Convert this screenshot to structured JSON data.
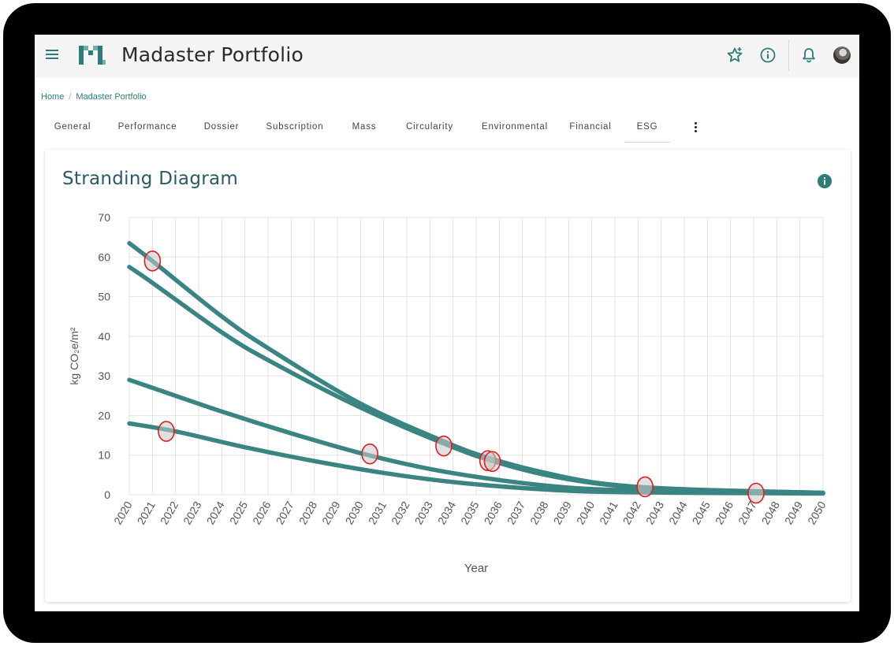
{
  "app": {
    "title": "Madaster Portfolio",
    "logo_name": "madaster-logo",
    "accent_color": "#2e7b78"
  },
  "toolbar": {
    "icons": [
      "menu-icon",
      "star-icon",
      "info-icon",
      "bell-icon"
    ]
  },
  "breadcrumb": {
    "home": "Home",
    "separator": "/",
    "current": "Madaster Portfolio"
  },
  "tabs": [
    {
      "label": "General"
    },
    {
      "label": "Performance"
    },
    {
      "label": "Dossier"
    },
    {
      "label": "Subscription"
    },
    {
      "label": "Mass"
    },
    {
      "label": "Circularity"
    },
    {
      "label": "Environmental"
    },
    {
      "label": "Financial"
    },
    {
      "label": "ESG",
      "active": true
    }
  ],
  "card": {
    "title": "Stranding Diagram"
  },
  "chart_data": {
    "type": "line",
    "title": "Stranding Diagram",
    "xlabel": "Year",
    "ylabel": "kg CO₂e/m²",
    "xlim": [
      2020,
      2050
    ],
    "ylim": [
      0,
      70
    ],
    "yticks": [
      0,
      10,
      20,
      30,
      40,
      50,
      60,
      70
    ],
    "xticks": [
      2020,
      2021,
      2022,
      2023,
      2024,
      2025,
      2026,
      2027,
      2028,
      2029,
      2030,
      2031,
      2032,
      2033,
      2034,
      2035,
      2036,
      2037,
      2038,
      2039,
      2040,
      2041,
      2042,
      2043,
      2044,
      2045,
      2046,
      2047,
      2048,
      2049,
      2050
    ],
    "grid": true,
    "line_color": "#3a8581",
    "marker_color": "#e31b23",
    "series": [
      {
        "x": [
          2020,
          2021,
          2024,
          2026,
          2030,
          2034,
          2036,
          2038,
          2040,
          2042,
          2045,
          2050
        ],
        "values": [
          63.5,
          59,
          45,
          37,
          23,
          12.5,
          8.5,
          5.5,
          3.2,
          2,
          1.2,
          0.5
        ]
      },
      {
        "x": [
          2020,
          2021,
          2024,
          2026,
          2030,
          2034,
          2036,
          2038,
          2040,
          2042,
          2045,
          2050
        ],
        "values": [
          57.5,
          53.5,
          41,
          34,
          22,
          12,
          8,
          5,
          3,
          1.8,
          1.1,
          0.5
        ]
      },
      {
        "x": [
          2020,
          2021,
          2024,
          2027,
          2030,
          2033,
          2036,
          2039,
          2042,
          2045,
          2050
        ],
        "values": [
          29,
          27,
          21,
          15.5,
          10.5,
          6.5,
          3.7,
          1.8,
          1,
          0.7,
          0.4
        ]
      },
      {
        "x": [
          2020,
          2022,
          2025,
          2028,
          2031,
          2034,
          2037,
          2040,
          2044,
          2047,
          2050
        ],
        "values": [
          18,
          16,
          12,
          8.5,
          5.5,
          3.2,
          1.7,
          0.8,
          0.5,
          0.4,
          0.3
        ]
      }
    ],
    "markers": [
      {
        "x": 2021,
        "y": 59
      },
      {
        "x": 2021.6,
        "y": 16
      },
      {
        "x": 2030.4,
        "y": 10.3
      },
      {
        "x": 2033.6,
        "y": 12.3
      },
      {
        "x": 2035.5,
        "y": 8.6
      },
      {
        "x": 2035.7,
        "y": 8.4
      },
      {
        "x": 2042.3,
        "y": 2
      },
      {
        "x": 2047.1,
        "y": 0.4
      }
    ]
  }
}
